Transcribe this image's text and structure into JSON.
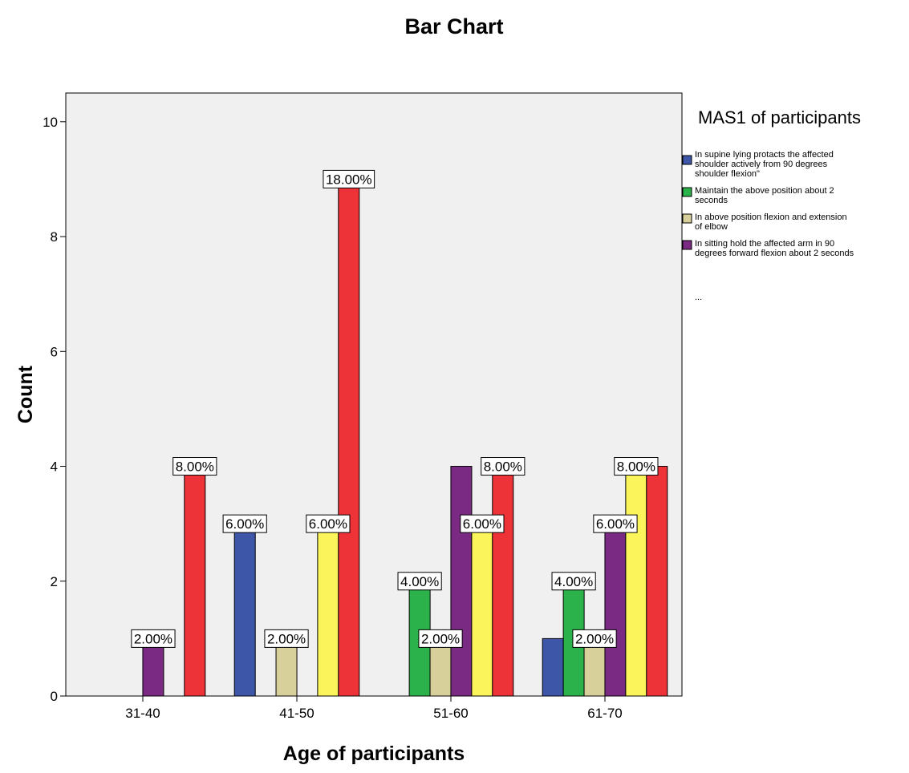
{
  "chart_data": {
    "type": "bar",
    "title": "Bar Chart",
    "xlabel": "Age of participants",
    "ylabel": "Count",
    "ylim": [
      0,
      10.5
    ],
    "yticks": [
      0,
      2,
      4,
      6,
      8,
      10
    ],
    "grid": false,
    "legend_position": "right",
    "categories": [
      "31-40",
      "41-50",
      "51-60",
      "61-70"
    ],
    "legend": {
      "title": "MAS1 of participants",
      "more": "..."
    },
    "series": [
      {
        "name": "In supine lying protacts the affected shoulder actively from 90 degrees shoulder flexion\"",
        "legend_lines": [
          "In supine lying protacts the affected",
          "shoulder actively from 90 degrees",
          "shoulder flexion\""
        ],
        "color": "#3D56A8",
        "values": [
          0,
          3,
          0,
          1
        ],
        "labels": [
          "",
          "6.00%",
          "",
          ""
        ]
      },
      {
        "name": "Maintain the above position about 2 seconds",
        "legend_lines": [
          "Maintain the above position about 2",
          "seconds"
        ],
        "color": "#2BB24A",
        "values": [
          0,
          0,
          2,
          2
        ],
        "labels": [
          "",
          "",
          "4.00%",
          "4.00%"
        ]
      },
      {
        "name": "In above position flexion and extension of elbow",
        "legend_lines": [
          "In above position flexion and extension",
          "of elbow"
        ],
        "color": "#D8D09B",
        "values": [
          0,
          1,
          1,
          1
        ],
        "labels": [
          "",
          "2.00%",
          "2.00%",
          "2.00%"
        ]
      },
      {
        "name": "In sitting hold the affected arm in 90 degrees forward flexion about 2 seconds",
        "legend_lines": [
          "In sitting hold the affected arm in 90",
          "degrees forward flexion about 2 seconds"
        ],
        "color": "#7B2A84",
        "values": [
          1,
          0,
          4,
          3
        ],
        "labels": [
          "2.00%",
          "",
          "",
          "6.00%"
        ]
      },
      {
        "name": "",
        "legend_lines": [],
        "color": "#FBF45A",
        "values": [
          0,
          3,
          3,
          4
        ],
        "labels": [
          "",
          "6.00%",
          "6.00%",
          ""
        ]
      },
      {
        "name": "",
        "legend_lines": [],
        "color": "#EE3338",
        "values": [
          4,
          9,
          4,
          4
        ],
        "labels": [
          "8.00%",
          "18.00%",
          "8.00%",
          "8.00%"
        ]
      }
    ],
    "label_overrides": [
      {
        "series": 5,
        "category": 3,
        "anchor_series": 4
      }
    ]
  }
}
